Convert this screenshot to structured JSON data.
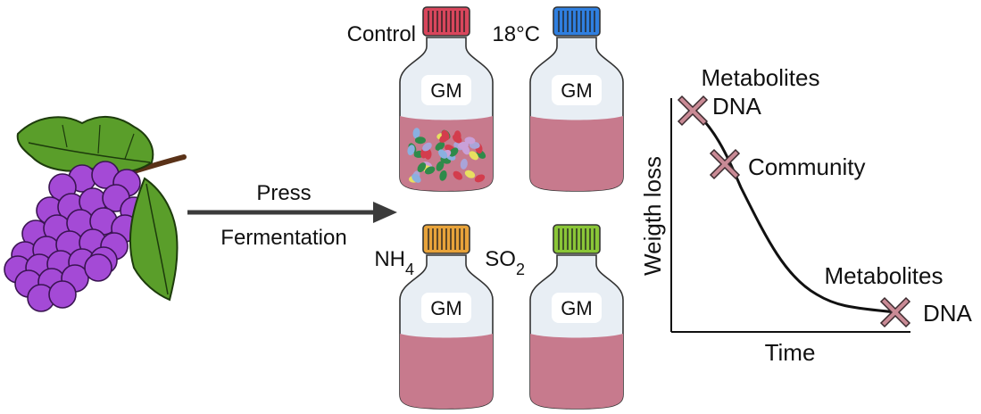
{
  "steps": {
    "line1": "Press",
    "line2": "Fermentation"
  },
  "bottles": [
    {
      "id": "control",
      "condition": "Control",
      "sub": "",
      "label": "GM",
      "cap_color": "#d9465c",
      "has_microbes": true
    },
    {
      "id": "18c",
      "condition": "18°C",
      "sub": "",
      "label": "GM",
      "cap_color": "#2f7fe0",
      "has_microbes": false
    },
    {
      "id": "nh4",
      "condition": "NH",
      "sub": "4",
      "label": "GM",
      "cap_color": "#e8a33a",
      "has_microbes": false
    },
    {
      "id": "so2",
      "condition": "SO",
      "sub": "2",
      "label": "GM",
      "cap_color": "#8ac637",
      "has_microbes": false
    }
  ],
  "curve": {
    "ylabel": "Weigth loss",
    "xlabel": "Time",
    "markers": [
      {
        "lines": [
          "Metabolites",
          "DNA"
        ]
      },
      {
        "lines": [
          "Community"
        ]
      },
      {
        "lines": [
          "Metabolites",
          "DNA"
        ]
      }
    ],
    "marker_color": "#c98a95"
  },
  "colors": {
    "grape": "#a44ad6",
    "leaf": "#5a9e2a",
    "wine": "#c77a8d",
    "arrow": "#3b3b3b"
  }
}
